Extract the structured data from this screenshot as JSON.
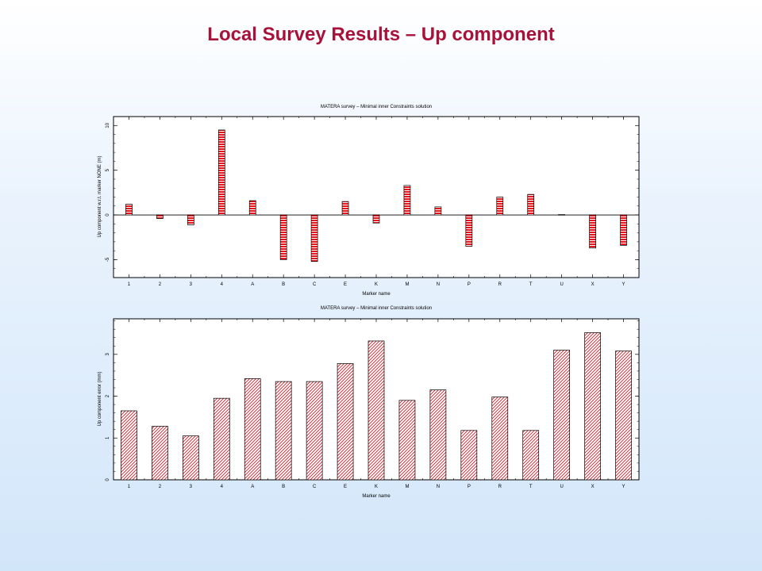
{
  "slide": {
    "title": "Local Survey Results – Up component"
  },
  "chart_data": [
    {
      "type": "bar",
      "title": "MATERA survey – Minimal inner Constraints solution",
      "xlabel": "Marker name",
      "ylabel": "Up component w.r.t. marker NONE (m)",
      "categories": [
        "1",
        "2",
        "3",
        "4",
        "A",
        "B",
        "C",
        "E",
        "K",
        "M",
        "N",
        "P",
        "R",
        "T",
        "U",
        "X",
        "Y"
      ],
      "values": [
        1.2,
        -0.4,
        -1.1,
        9.5,
        1.6,
        -5.0,
        -5.2,
        1.5,
        -0.9,
        3.3,
        0.9,
        -3.5,
        2.0,
        2.3,
        0.05,
        -3.7,
        -3.4
      ],
      "ylim": [
        -7,
        11
      ],
      "yticks": [
        -5,
        0,
        5,
        10
      ],
      "ytick_labels": [
        "-5",
        "0",
        "5",
        "10"
      ],
      "bar_fill": "#e8141c",
      "pattern": "horizontal-lines"
    },
    {
      "type": "bar",
      "title": "MATERA survey – Minimal inner Constraints solution",
      "xlabel": "Marker name",
      "ylabel": "Up component error (mm)",
      "categories": [
        "1",
        "2",
        "3",
        "4",
        "A",
        "B",
        "C",
        "E",
        "K",
        "M",
        "N",
        "P",
        "R",
        "T",
        "U",
        "X",
        "Y"
      ],
      "values": [
        1.65,
        1.28,
        1.05,
        1.95,
        2.42,
        2.35,
        2.35,
        2.78,
        3.32,
        1.9,
        2.15,
        1.18,
        1.98,
        1.18,
        3.1,
        3.52,
        3.08
      ],
      "ylim": [
        0,
        3.85
      ],
      "yticks": [
        0,
        1,
        2,
        3
      ],
      "ytick_labels": [
        "0",
        "1",
        "2",
        "3"
      ],
      "bar_fill": "#e8141c",
      "pattern": "diagonal-hatch"
    }
  ]
}
